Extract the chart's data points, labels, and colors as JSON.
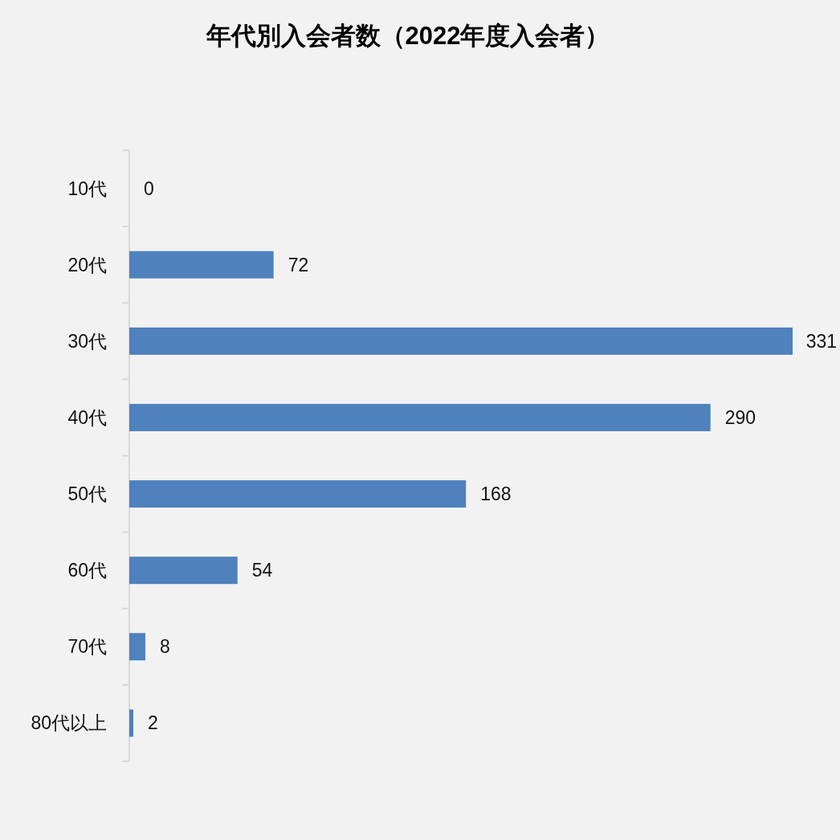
{
  "chart_data": {
    "type": "bar",
    "title": "年代別入会者数（2022年度入会者）",
    "orientation": "horizontal",
    "categories": [
      "10代",
      "20代",
      "30代",
      "40代",
      "50代",
      "60代",
      "70代",
      "80代以上"
    ],
    "values": [
      0,
      72,
      331,
      290,
      168,
      54,
      8,
      2
    ],
    "color": "#4f81bd",
    "data_labels": true
  }
}
